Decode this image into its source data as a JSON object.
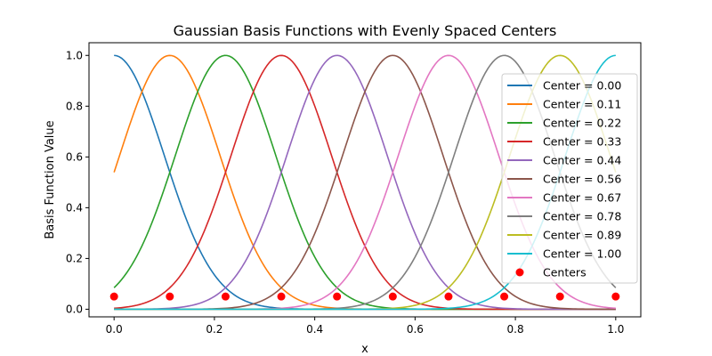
{
  "chart_data": {
    "type": "line",
    "title": "Gaussian Basis Functions with Evenly Spaced Centers",
    "xlabel": "x",
    "ylabel": "Basis Function Value",
    "xlim": [
      -0.05,
      1.05
    ],
    "ylim": [
      -0.03,
      1.05
    ],
    "x_ticks": [
      "0.0",
      "0.2",
      "0.4",
      "0.6",
      "0.8",
      "1.0"
    ],
    "y_ticks": [
      "0.0",
      "0.2",
      "0.4",
      "0.6",
      "0.8",
      "1.0"
    ],
    "grid": false,
    "legend_position": "center-right",
    "x_range": [
      0,
      1
    ],
    "sigma": 0.1,
    "series": [
      {
        "name": "Center = 0.00",
        "center": 0.0,
        "color": "#1f77b4"
      },
      {
        "name": "Center = 0.11",
        "center": 0.1111,
        "color": "#ff7f0e"
      },
      {
        "name": "Center = 0.22",
        "center": 0.2222,
        "color": "#2ca02c"
      },
      {
        "name": "Center = 0.33",
        "center": 0.3333,
        "color": "#d62728"
      },
      {
        "name": "Center = 0.44",
        "center": 0.4444,
        "color": "#9467bd"
      },
      {
        "name": "Center = 0.56",
        "center": 0.5556,
        "color": "#8c564b"
      },
      {
        "name": "Center = 0.67",
        "center": 0.6667,
        "color": "#e377c2"
      },
      {
        "name": "Center = 0.78",
        "center": 0.7778,
        "color": "#7f7f7f"
      },
      {
        "name": "Center = 0.89",
        "center": 0.8889,
        "color": "#bcbd22"
      },
      {
        "name": "Center = 1.00",
        "center": 1.0,
        "color": "#17becf"
      }
    ],
    "centers_marker": {
      "name": "Centers",
      "color": "#ff0000",
      "y": 0.05,
      "x": [
        0.0,
        0.1111,
        0.2222,
        0.3333,
        0.4444,
        0.5556,
        0.6667,
        0.7778,
        0.8889,
        1.0
      ]
    }
  }
}
